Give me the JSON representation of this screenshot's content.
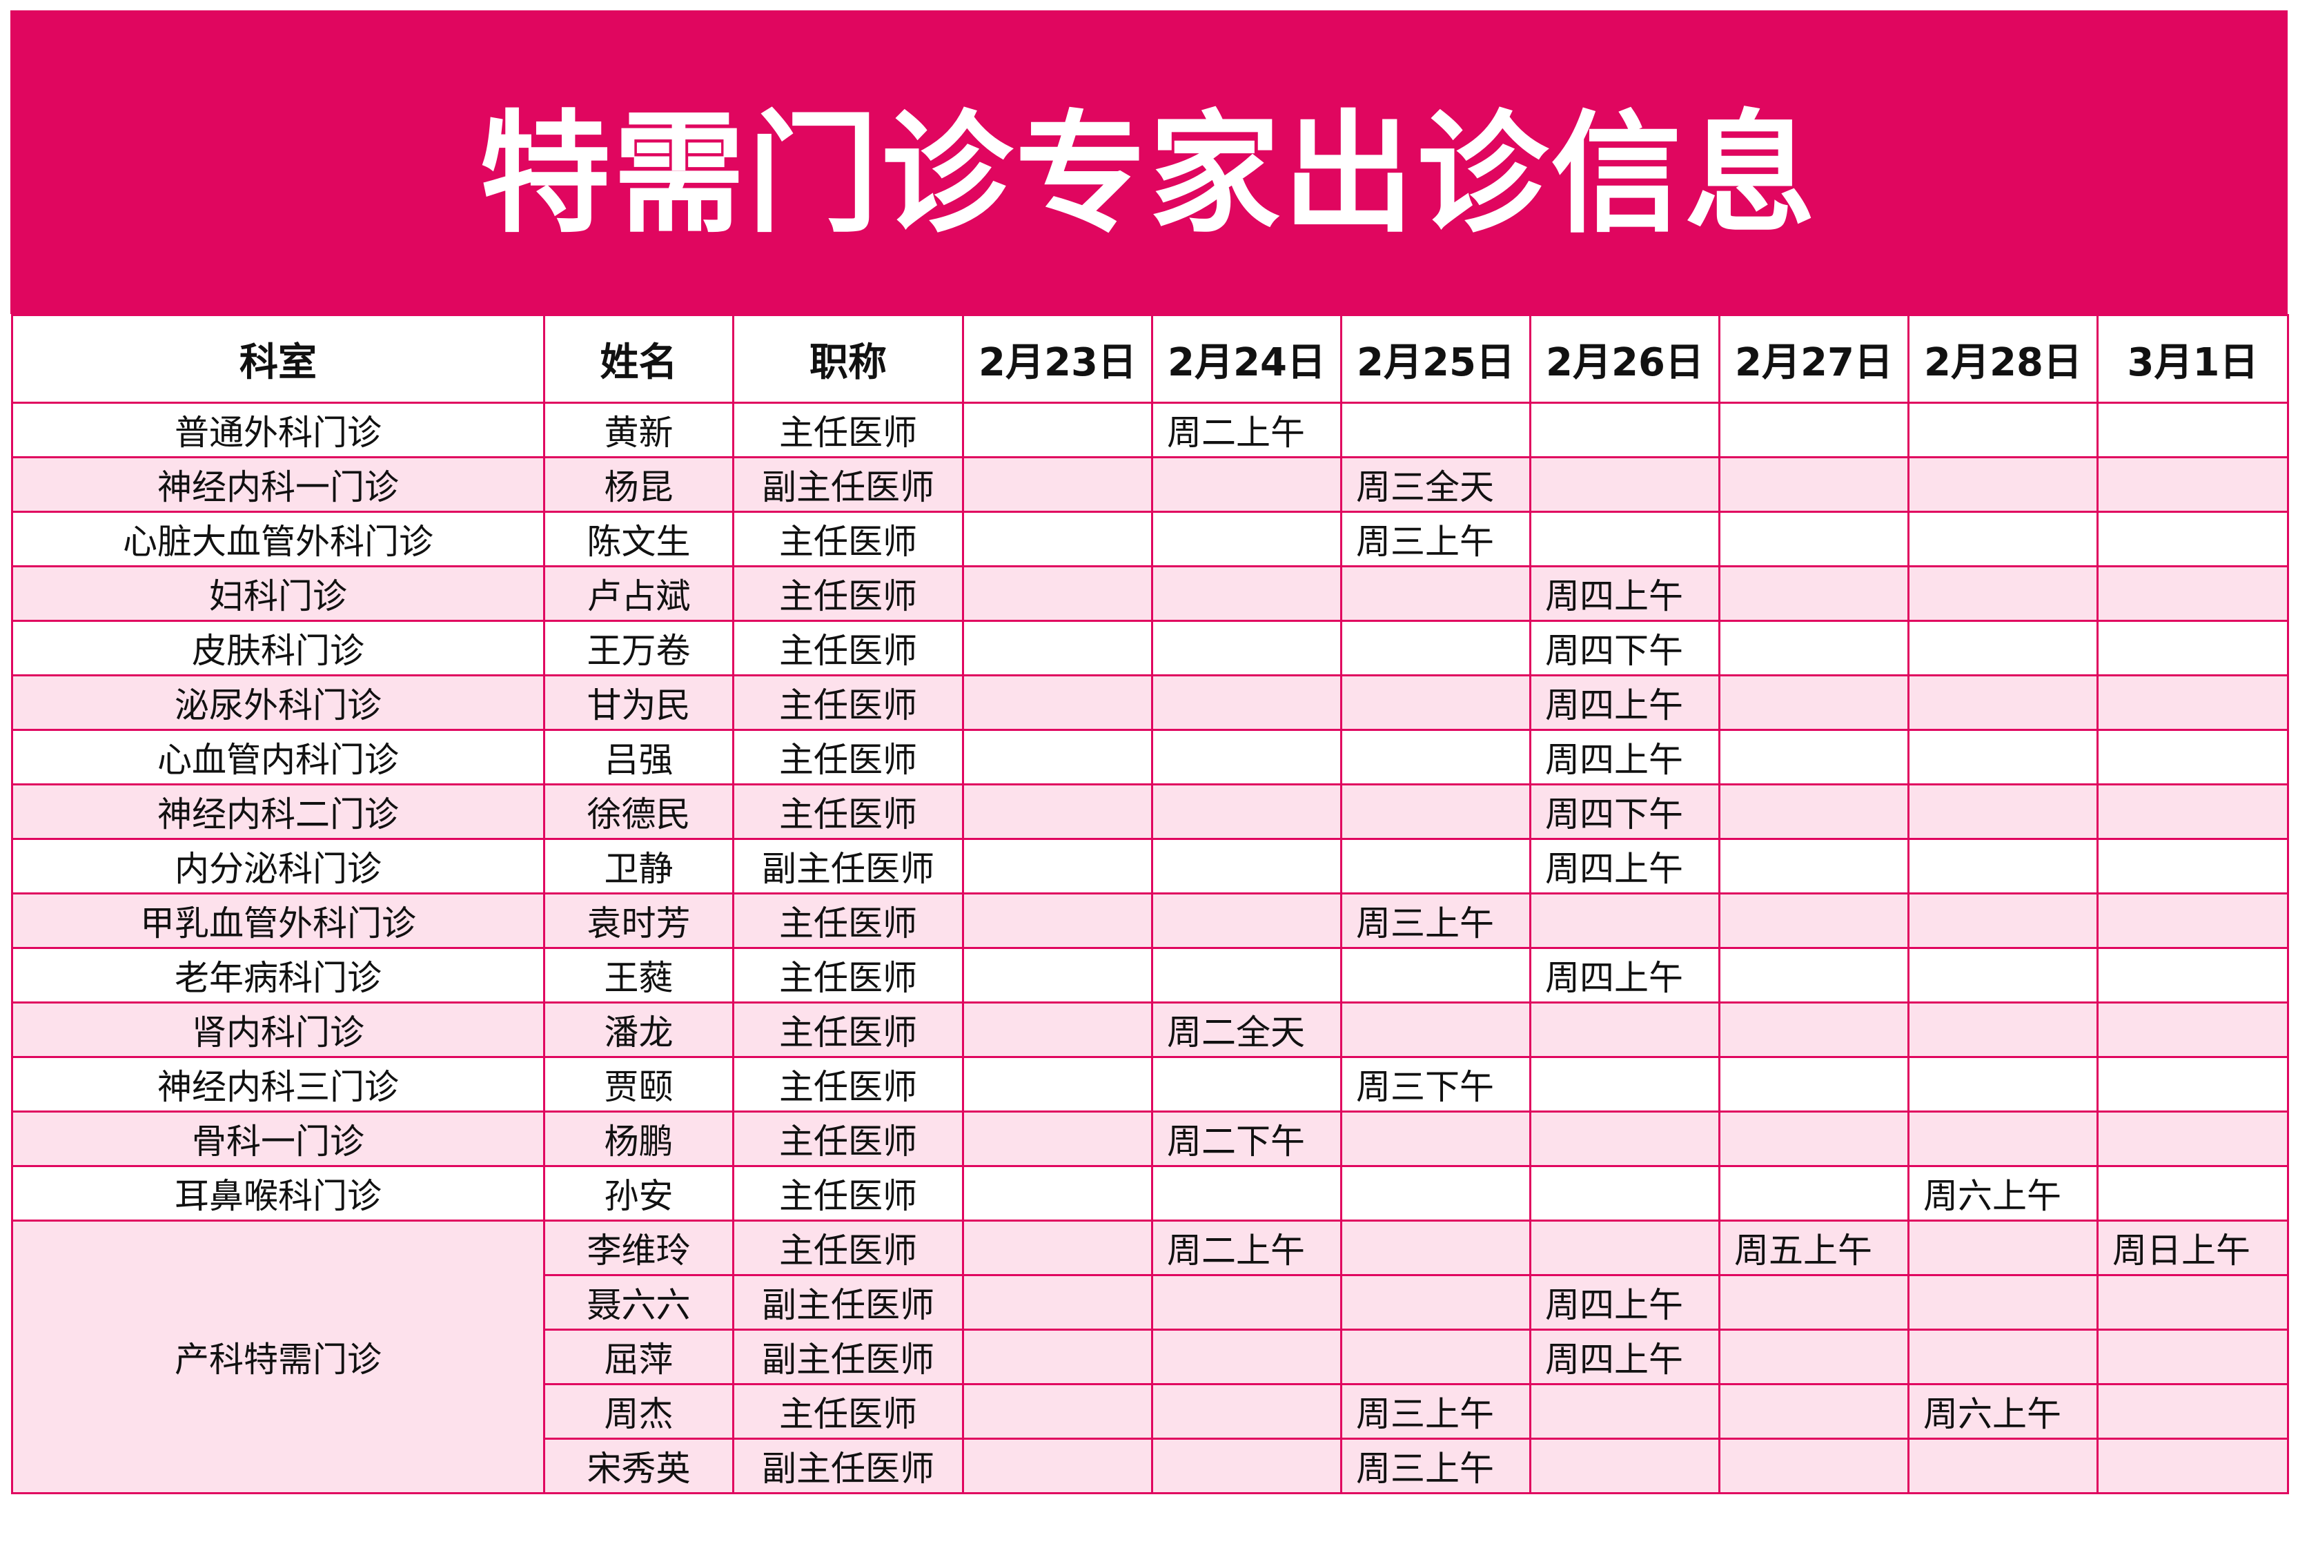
{
  "title": "特需门诊专家出诊信息",
  "colors": {
    "accent": "#E0065F",
    "stripe": "#FDE1EC"
  },
  "headers": [
    "科室",
    "姓名",
    "职称",
    "2月23日",
    "2月24日",
    "2月25日",
    "2月26日",
    "2月27日",
    "2月28日",
    "3月1日"
  ],
  "rows": [
    {
      "dept": "普通外科门诊",
      "name": "黄新",
      "title": "主任医师",
      "schedule": [
        "",
        "周二上午",
        "",
        "",
        "",
        "",
        ""
      ]
    },
    {
      "dept": "神经内科一门诊",
      "name": "杨昆",
      "title": "副主任医师",
      "schedule": [
        "",
        "",
        "周三全天",
        "",
        "",
        "",
        ""
      ]
    },
    {
      "dept": "心脏大血管外科门诊",
      "name": "陈文生",
      "title": "主任医师",
      "schedule": [
        "",
        "",
        "周三上午",
        "",
        "",
        "",
        ""
      ]
    },
    {
      "dept": "妇科门诊",
      "name": "卢占斌",
      "title": "主任医师",
      "schedule": [
        "",
        "",
        "",
        "周四上午",
        "",
        "",
        ""
      ]
    },
    {
      "dept": "皮肤科门诊",
      "name": "王万卷",
      "title": "主任医师",
      "schedule": [
        "",
        "",
        "",
        "周四下午",
        "",
        "",
        ""
      ]
    },
    {
      "dept": "泌尿外科门诊",
      "name": "甘为民",
      "title": "主任医师",
      "schedule": [
        "",
        "",
        "",
        "周四上午",
        "",
        "",
        ""
      ]
    },
    {
      "dept": "心血管内科门诊",
      "name": "吕强",
      "title": "主任医师",
      "schedule": [
        "",
        "",
        "",
        "周四上午",
        "",
        "",
        ""
      ]
    },
    {
      "dept": "神经内科二门诊",
      "name": "徐德民",
      "title": "主任医师",
      "schedule": [
        "",
        "",
        "",
        "周四下午",
        "",
        "",
        ""
      ]
    },
    {
      "dept": "内分泌科门诊",
      "name": "卫静",
      "title": "副主任医师",
      "schedule": [
        "",
        "",
        "",
        "周四上午",
        "",
        "",
        ""
      ]
    },
    {
      "dept": "甲乳血管外科门诊",
      "name": "袁时芳",
      "title": "主任医师",
      "schedule": [
        "",
        "",
        "周三上午",
        "",
        "",
        "",
        ""
      ]
    },
    {
      "dept": "老年病科门诊",
      "name": "王蕤",
      "title": "主任医师",
      "schedule": [
        "",
        "",
        "",
        "周四上午",
        "",
        "",
        ""
      ]
    },
    {
      "dept": "肾内科门诊",
      "name": "潘龙",
      "title": "主任医师",
      "schedule": [
        "",
        "周二全天",
        "",
        "",
        "",
        "",
        ""
      ]
    },
    {
      "dept": "神经内科三门诊",
      "name": "贾颐",
      "title": "主任医师",
      "schedule": [
        "",
        "",
        "周三下午",
        "",
        "",
        "",
        ""
      ]
    },
    {
      "dept": "骨科一门诊",
      "name": "杨鹏",
      "title": "主任医师",
      "schedule": [
        "",
        "周二下午",
        "",
        "",
        "",
        "",
        ""
      ]
    },
    {
      "dept": "耳鼻喉科门诊",
      "name": "孙安",
      "title": "主任医师",
      "schedule": [
        "",
        "",
        "",
        "",
        "",
        "周六上午",
        ""
      ]
    }
  ],
  "group": {
    "dept": "产科特需门诊",
    "rows": [
      {
        "name": "李维玲",
        "title": "主任医师",
        "schedule": [
          "",
          "周二上午",
          "",
          "",
          "周五上午",
          "",
          "周日上午"
        ]
      },
      {
        "name": "聂六六",
        "title": "副主任医师",
        "schedule": [
          "",
          "",
          "",
          "周四上午",
          "",
          "",
          ""
        ]
      },
      {
        "name": "屈萍",
        "title": "副主任医师",
        "schedule": [
          "",
          "",
          "",
          "周四上午",
          "",
          "",
          ""
        ]
      },
      {
        "name": "周杰",
        "title": "主任医师",
        "schedule": [
          "",
          "",
          "周三上午",
          "",
          "",
          "周六上午",
          ""
        ]
      },
      {
        "name": "宋秀英",
        "title": "副主任医师",
        "schedule": [
          "",
          "",
          "周三上午",
          "",
          "",
          "",
          ""
        ]
      }
    ]
  }
}
